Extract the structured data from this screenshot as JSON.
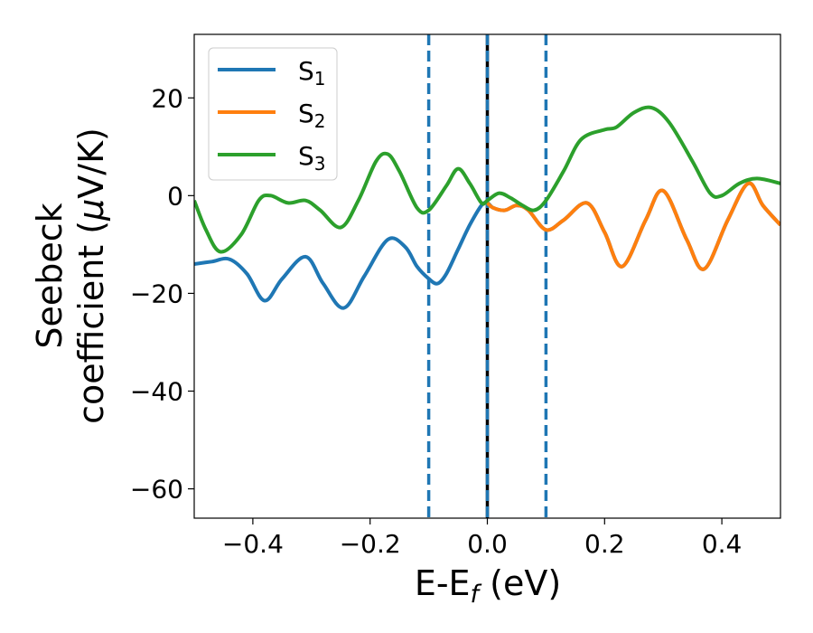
{
  "chart_data": {
    "type": "line",
    "xlabel_main": "E-E",
    "xlabel_sub": "f",
    "xlabel_unit": " (eV)",
    "ylabel_line1": "Seebeck",
    "ylabel_line2_a": "coefficient  (",
    "ylabel_line2_mu": "μ",
    "ylabel_line2_b": "V/K)",
    "xlim": [
      -0.5,
      0.5
    ],
    "ylim": [
      -66,
      33
    ],
    "xticks": [
      -0.4,
      -0.2,
      0.0,
      0.2,
      0.4
    ],
    "xtick_labels": [
      "−0.4",
      "−0.2",
      "0.0",
      "0.2",
      "0.4"
    ],
    "yticks": [
      20,
      0,
      -20,
      -40,
      -60
    ],
    "ytick_labels": [
      "20",
      "0",
      "−20",
      "−40",
      "−60"
    ],
    "legend_position": "top-left",
    "vlines": [
      {
        "x": -0.1,
        "style": "dashed",
        "color": "#1f77b4"
      },
      {
        "x": 0.0,
        "style": "solid",
        "color": "#000000"
      },
      {
        "x": 0.0,
        "style": "dashed",
        "color": "#1f77b4"
      },
      {
        "x": 0.1,
        "style": "dashed",
        "color": "#1f77b4"
      }
    ],
    "series": [
      {
        "name": "S",
        "subscript": "1",
        "color": "#1f77b4",
        "x": [
          -0.5,
          -0.47,
          -0.44,
          -0.41,
          -0.38,
          -0.35,
          -0.31,
          -0.28,
          -0.245,
          -0.21,
          -0.17,
          -0.14,
          -0.12,
          -0.1,
          -0.085,
          -0.07,
          -0.05,
          -0.03,
          -0.01,
          0.0,
          0.01,
          0.03,
          0.05,
          0.07,
          0.1,
          0.13,
          0.17,
          0.2,
          0.23,
          0.27,
          0.3,
          0.34,
          0.37,
          0.41,
          0.445,
          0.47,
          0.5
        ],
        "y": [
          -14,
          -13.5,
          -13,
          -16,
          -21.5,
          -17,
          -12.5,
          -18,
          -23,
          -16.5,
          -9,
          -10.5,
          -14.5,
          -17,
          -18,
          -16,
          -11,
          -6,
          -2,
          -1.5,
          -2.5,
          -3,
          -2,
          -3,
          -7,
          -5,
          -1.5,
          -7.5,
          -14.5,
          -5,
          1,
          -9,
          -15,
          -5,
          2.5,
          -2,
          -6
        ]
      },
      {
        "name": "S",
        "subscript": "2",
        "color": "#ff7f0e",
        "x": [
          0.0,
          0.01,
          0.03,
          0.05,
          0.07,
          0.1,
          0.13,
          0.17,
          0.2,
          0.23,
          0.27,
          0.3,
          0.34,
          0.37,
          0.41,
          0.445,
          0.47,
          0.5
        ],
        "y": [
          -1.5,
          -2.5,
          -3,
          -2,
          -3,
          -7,
          -5,
          -1.5,
          -7.5,
          -14.5,
          -5,
          1,
          -9,
          -15,
          -5,
          2.5,
          -2,
          -6
        ]
      },
      {
        "name": "S",
        "subscript": "3",
        "color": "#2ca02c",
        "x": [
          -0.5,
          -0.48,
          -0.455,
          -0.42,
          -0.39,
          -0.37,
          -0.34,
          -0.31,
          -0.285,
          -0.25,
          -0.22,
          -0.19,
          -0.17,
          -0.15,
          -0.12,
          -0.1,
          -0.07,
          -0.05,
          -0.03,
          -0.01,
          0.0,
          0.02,
          0.04,
          0.06,
          0.08,
          0.1,
          0.13,
          0.16,
          0.2,
          0.22,
          0.25,
          0.28,
          0.31,
          0.35,
          0.38,
          0.4,
          0.43,
          0.46,
          0.5
        ],
        "y": [
          -1,
          -7,
          -11.5,
          -8,
          -1,
          0,
          -1.5,
          -1,
          -3,
          -6.5,
          -1,
          7,
          8.5,
          5,
          -2.5,
          -3,
          2,
          5.5,
          2.5,
          -1.5,
          -1,
          0.5,
          -0.5,
          -2,
          -3,
          -1,
          5,
          11.5,
          13.5,
          14,
          17,
          18,
          15,
          7,
          0.5,
          0,
          2.5,
          3.5,
          2.5
        ]
      }
    ]
  }
}
